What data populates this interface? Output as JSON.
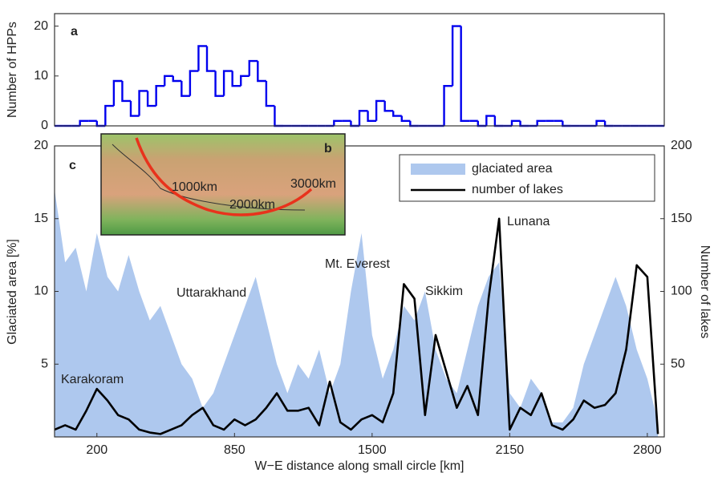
{
  "chart_data": [
    {
      "type": "histogram",
      "panel": "a",
      "y_label": "Number of HPPs",
      "color": "#0000ee",
      "bins": [
        0,
        40,
        80,
        120,
        160,
        200,
        240,
        280,
        320,
        360,
        400,
        440,
        480,
        520,
        560,
        600,
        640,
        680,
        720,
        760,
        800,
        840,
        880,
        920,
        960,
        1000,
        1040,
        1080,
        1120,
        1160,
        1200,
        1240,
        1280,
        1320,
        1360,
        1400,
        1440,
        1480,
        1520,
        1560,
        1600,
        1640,
        1680,
        1720,
        1760,
        1800,
        1840,
        1880,
        1920,
        1960,
        2000,
        2040,
        2080,
        2120,
        2160,
        2200,
        2240,
        2280,
        2320,
        2360,
        2400,
        2440,
        2480,
        2520,
        2560,
        2600,
        2640,
        2680,
        2720,
        2760,
        2800,
        2840,
        2880
      ],
      "values": [
        0,
        0,
        0,
        1,
        1,
        0,
        4,
        9,
        5,
        2,
        7,
        4,
        8,
        10,
        9,
        6,
        11,
        16,
        11,
        6,
        11,
        8,
        10,
        13,
        9,
        4,
        0,
        0,
        0,
        0,
        0,
        0,
        0,
        1,
        1,
        0,
        3,
        1,
        5,
        3,
        2,
        1,
        0,
        0,
        0,
        0,
        8,
        20,
        1,
        1,
        0,
        2,
        0,
        0,
        1,
        0,
        0,
        1,
        1,
        1,
        0,
        0,
        0,
        0,
        1,
        0,
        0,
        0,
        0,
        0,
        0,
        0
      ],
      "xlim": [
        0,
        2880
      ],
      "ylim": [
        0,
        22.5
      ],
      "yticks": [
        0,
        10,
        20
      ]
    },
    {
      "type": "combo",
      "panel": "c",
      "x_label": "W−E distance along small circle [km]",
      "y_label": "Glaciated area [%]",
      "y2_label": "Number of lakes",
      "x": [
        0,
        50,
        100,
        150,
        200,
        250,
        300,
        350,
        400,
        450,
        500,
        550,
        600,
        650,
        700,
        750,
        800,
        850,
        900,
        950,
        1000,
        1050,
        1100,
        1150,
        1200,
        1250,
        1300,
        1350,
        1400,
        1450,
        1500,
        1550,
        1600,
        1650,
        1700,
        1750,
        1800,
        1850,
        1900,
        1950,
        2000,
        2050,
        2100,
        2150,
        2200,
        2250,
        2300,
        2350,
        2400,
        2450,
        2500,
        2550,
        2600,
        2650,
        2700,
        2750,
        2800,
        2850
      ],
      "series": [
        {
          "name": "glaciated area",
          "color": "#aec8ee",
          "kind": "area",
          "values": [
            17,
            12,
            13,
            10,
            14,
            11,
            10,
            12.5,
            10,
            8,
            9,
            7,
            5,
            4,
            2,
            3,
            5,
            7,
            9,
            11,
            8,
            5,
            3,
            5,
            4,
            6,
            3,
            5,
            10,
            14,
            7,
            4,
            6,
            9,
            8,
            10,
            6,
            4,
            3,
            6,
            9,
            11,
            12,
            3,
            2,
            4,
            3,
            1,
            1,
            2,
            5,
            7,
            9,
            11,
            9,
            6,
            4,
            1
          ]
        },
        {
          "name": "number of lakes",
          "color": "#000000",
          "kind": "line",
          "axis": "y2",
          "values": [
            5,
            8,
            5,
            18,
            33,
            25,
            15,
            12,
            5,
            3,
            2,
            5,
            8,
            15,
            20,
            8,
            5,
            12,
            8,
            12,
            20,
            30,
            18,
            18,
            20,
            8,
            38,
            10,
            5,
            12,
            15,
            10,
            30,
            105,
            95,
            15,
            70,
            45,
            20,
            35,
            15,
            95,
            150,
            5,
            20,
            15,
            30,
            8,
            5,
            12,
            25,
            20,
            22,
            30,
            60,
            118,
            110,
            2
          ]
        }
      ],
      "xlim": [
        0,
        2880
      ],
      "xticks": [
        200,
        850,
        1500,
        2150,
        2800
      ],
      "ylim": [
        0,
        20
      ],
      "yticks": [
        5,
        10,
        15,
        20
      ],
      "y2lim": [
        0,
        200
      ],
      "y2ticks": [
        50,
        100,
        150,
        200
      ],
      "legend": "upper right",
      "annotations": [
        "Karakoram",
        "Uttarakhand",
        "Mt. Everest",
        "Sikkim",
        "Lunana"
      ],
      "inset": {
        "label": "b",
        "arc_labels": [
          "1000km",
          "2000km",
          "3000km"
        ]
      }
    }
  ]
}
